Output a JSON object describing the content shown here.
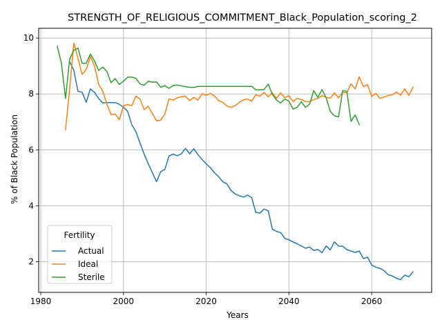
{
  "chart_data": {
    "type": "line",
    "title": "STRENGTH_OF_RELIGIOUS_COMMITMENT_Black_Population_scoring_2",
    "xlabel": "Years",
    "ylabel": "% of Black Population",
    "xlim": [
      1979.5,
      2074.5
    ],
    "ylim": [
      0.9,
      10.35
    ],
    "xticks": [
      1980,
      2000,
      2020,
      2040,
      2060
    ],
    "yticks": [
      2,
      4,
      6,
      8,
      10
    ],
    "grid": true,
    "legend": {
      "title": "Fertility",
      "placement": "lower-left"
    },
    "series": [
      {
        "name": "Actual",
        "color": "#1f77b4",
        "x": [
          1987,
          1988,
          1989,
          1990,
          1991,
          1992,
          1993,
          1994,
          1995,
          1996,
          1997,
          1998,
          1999,
          2000,
          2001,
          2002,
          2003,
          2004,
          2005,
          2006,
          2007,
          2008,
          2009,
          2010,
          2011,
          2012,
          2013,
          2014,
          2015,
          2016,
          2017,
          2018,
          2019,
          2020,
          2021,
          2022,
          2023,
          2024,
          2025,
          2026,
          2027,
          2028,
          2029,
          2030,
          2031,
          2032,
          2033,
          2034,
          2035,
          2036,
          2037,
          2038,
          2039,
          2040,
          2041,
          2042,
          2043,
          2044,
          2045,
          2046,
          2047,
          2048,
          2049,
          2050,
          2051,
          2052,
          2053,
          2054,
          2055,
          2056,
          2057,
          2058,
          2059,
          2060,
          2061,
          2062,
          2063,
          2064,
          2065,
          2066,
          2067,
          2068,
          2069,
          2070
        ],
        "y": [
          9.15,
          8.85,
          8.1,
          8.06,
          7.7,
          8.18,
          8.05,
          7.84,
          7.68,
          7.69,
          7.69,
          7.69,
          7.63,
          7.52,
          7.38,
          6.9,
          6.65,
          6.25,
          5.85,
          5.5,
          5.18,
          4.86,
          5.22,
          5.3,
          5.78,
          5.85,
          5.79,
          5.86,
          6.05,
          5.86,
          6.04,
          5.83,
          5.66,
          5.5,
          5.36,
          5.18,
          5.04,
          4.86,
          4.78,
          4.55,
          4.42,
          4.36,
          4.31,
          4.38,
          4.29,
          3.76,
          3.74,
          3.88,
          3.82,
          3.16,
          3.08,
          3.04,
          2.83,
          2.78,
          2.7,
          2.64,
          2.56,
          2.48,
          2.52,
          2.4,
          2.44,
          2.32,
          2.56,
          2.42,
          2.71,
          2.56,
          2.55,
          2.43,
          2.38,
          2.33,
          2.38,
          2.11,
          2.16,
          1.88,
          1.8,
          1.76,
          1.68,
          1.53,
          1.49,
          1.4,
          1.36,
          1.52,
          1.46,
          1.64
        ]
      },
      {
        "name": "Ideal",
        "color": "#ff7f0e",
        "x": [
          1986,
          1987,
          1988,
          1989,
          1990,
          1991,
          1992,
          1993,
          1994,
          1995,
          1996,
          1997,
          1998,
          1999,
          2000,
          2001,
          2002,
          2003,
          2004,
          2005,
          2006,
          2007,
          2008,
          2009,
          2010,
          2011,
          2012,
          2013,
          2014,
          2015,
          2016,
          2017,
          2018,
          2019,
          2020,
          2021,
          2022,
          2023,
          2024,
          2025,
          2026,
          2027,
          2028,
          2029,
          2030,
          2031,
          2032,
          2033,
          2034,
          2035,
          2036,
          2037,
          2038,
          2039,
          2040,
          2041,
          2042,
          2043,
          2044,
          2045,
          2046,
          2047,
          2048,
          2049,
          2050,
          2051,
          2052,
          2053,
          2054,
          2055,
          2056,
          2057,
          2058,
          2059,
          2060,
          2061,
          2062,
          2063,
          2064,
          2065,
          2066,
          2067,
          2068,
          2069,
          2070
        ],
        "y": [
          6.72,
          8.2,
          9.82,
          9.28,
          8.7,
          8.88,
          9.34,
          9.0,
          8.35,
          8.1,
          7.64,
          7.26,
          7.28,
          7.08,
          7.58,
          7.62,
          7.58,
          7.92,
          7.82,
          7.44,
          7.56,
          7.3,
          7.04,
          7.06,
          7.28,
          7.82,
          7.78,
          7.86,
          7.9,
          7.92,
          7.76,
          7.88,
          7.78,
          8.01,
          7.95,
          8.02,
          7.93,
          7.76,
          7.7,
          7.57,
          7.52,
          7.58,
          7.7,
          7.79,
          7.82,
          7.74,
          7.97,
          7.92,
          8.05,
          7.9,
          8.04,
          7.84,
          8.04,
          7.86,
          7.94,
          7.72,
          7.84,
          7.8,
          7.73,
          7.72,
          7.8,
          7.84,
          7.94,
          7.88,
          7.85,
          8.04,
          7.86,
          8.06,
          8.04,
          8.36,
          8.18,
          8.61,
          8.26,
          8.33,
          7.91,
          8.02,
          7.84,
          7.89,
          7.95,
          7.97,
          8.07,
          7.96,
          8.18,
          7.95,
          8.25
        ]
      },
      {
        "name": "Sterile",
        "color": "#2ca02c",
        "x": [
          1984,
          1985,
          1986,
          1987,
          1988,
          1989,
          1990,
          1991,
          1992,
          1993,
          1994,
          1995,
          1996,
          1997,
          1998,
          1999,
          2000,
          2001,
          2002,
          2003,
          2004,
          2005,
          2006,
          2007,
          2008,
          2009,
          2010,
          2011,
          2012,
          2013,
          2014,
          2015,
          2016,
          2017,
          2018,
          2019,
          2020,
          2021,
          2022,
          2023,
          2024,
          2025,
          2026,
          2027,
          2028,
          2029,
          2030,
          2031,
          2032,
          2033,
          2034,
          2035,
          2036,
          2037,
          2038,
          2039,
          2040,
          2041,
          2042,
          2043,
          2044,
          2045,
          2046,
          2047,
          2048,
          2049,
          2050,
          2051,
          2052,
          2053,
          2054,
          2055,
          2056,
          2057
        ],
        "y": [
          9.7,
          9.1,
          7.84,
          9.25,
          9.56,
          9.64,
          9.1,
          9.1,
          9.43,
          9.18,
          8.84,
          8.96,
          8.8,
          8.4,
          8.55,
          8.34,
          8.46,
          8.6,
          8.6,
          8.56,
          8.36,
          8.31,
          8.46,
          8.42,
          8.43,
          8.24,
          8.3,
          8.2,
          8.3,
          8.32,
          8.29,
          8.26,
          8.24,
          8.23,
          8.27,
          8.27,
          8.27,
          8.27,
          8.27,
          8.27,
          8.27,
          8.27,
          8.27,
          8.27,
          8.27,
          8.27,
          8.27,
          8.27,
          8.15,
          8.15,
          8.16,
          8.35,
          7.98,
          7.78,
          7.68,
          7.82,
          7.74,
          7.46,
          7.52,
          7.72,
          7.52,
          7.64,
          8.12,
          7.88,
          8.16,
          7.86,
          7.37,
          7.22,
          7.18,
          8.12,
          8.1,
          7.02,
          7.25,
          6.9
        ]
      }
    ]
  }
}
